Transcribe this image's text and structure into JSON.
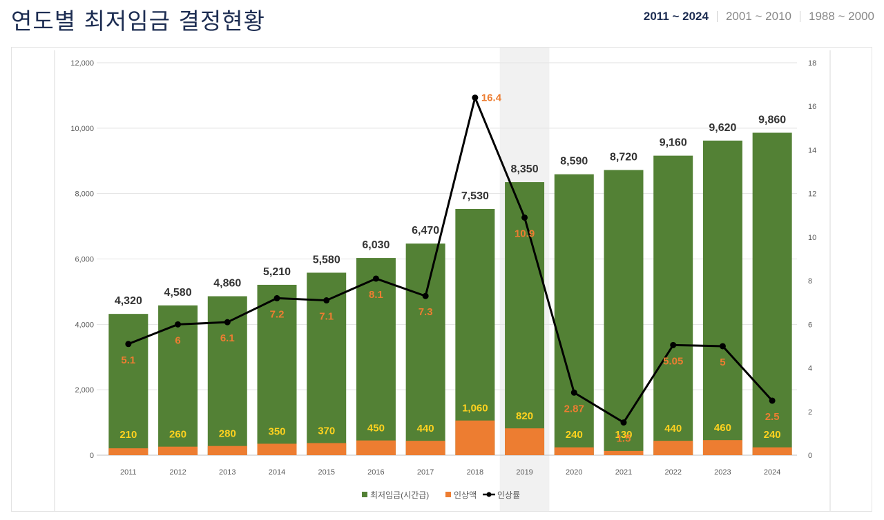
{
  "header": {
    "title": "연도별 최저임금 결정현황",
    "tabs": [
      {
        "label": "2011 ~ 2024",
        "active": true
      },
      {
        "label": "2001 ~ 2010",
        "active": false
      },
      {
        "label": "1988 ~ 2000",
        "active": false
      }
    ]
  },
  "colors": {
    "wage": "#538135",
    "increase_amount": "#ed7d31",
    "increase_rate": "#000000",
    "wage_label": "#333333",
    "rate_label": "#ed7d31",
    "amount_label": "#ffd21f",
    "highlight": "#f1f1f1"
  },
  "chart_data": {
    "type": "bar",
    "categories": [
      "2011",
      "2012",
      "2013",
      "2014",
      "2015",
      "2016",
      "2017",
      "2018",
      "2019",
      "2020",
      "2021",
      "2022",
      "2023",
      "2024"
    ],
    "series": [
      {
        "name": "최저임금(시간급)",
        "type": "bar",
        "axis": "left",
        "values": [
          4320,
          4580,
          4860,
          5210,
          5580,
          6030,
          6470,
          7530,
          8350,
          8590,
          8720,
          9160,
          9620,
          9860
        ],
        "labels": [
          "4,320",
          "4,580",
          "4,860",
          "5,210",
          "5,580",
          "6,030",
          "6,470",
          "7,530",
          "8,350",
          "8,590",
          "8,720",
          "9,160",
          "9,620",
          "9,860"
        ]
      },
      {
        "name": "인상액",
        "type": "bar",
        "axis": "left",
        "values": [
          210,
          260,
          280,
          350,
          370,
          450,
          440,
          1060,
          820,
          240,
          130,
          440,
          460,
          240
        ],
        "labels": [
          "210",
          "260",
          "280",
          "350",
          "370",
          "450",
          "440",
          "1,060",
          "820",
          "240",
          "130",
          "440",
          "460",
          "240"
        ]
      },
      {
        "name": "인상률",
        "type": "line",
        "axis": "right",
        "values": [
          5.1,
          6,
          6.1,
          7.2,
          7.1,
          8.1,
          7.3,
          16.4,
          10.9,
          2.87,
          1.5,
          5.05,
          5,
          2.5
        ],
        "labels": [
          "5.1",
          "6",
          "6.1",
          "7.2",
          "7.1",
          "8.1",
          "7.3",
          "16.4",
          "10.9",
          "2.87",
          "1.5",
          "5.05",
          "5",
          "2.5"
        ]
      }
    ],
    "y_left": {
      "range": [
        0,
        12000
      ],
      "ticks": [
        "0",
        "2,000",
        "4,000",
        "6,000",
        "8,000",
        "10,000",
        "12,000"
      ]
    },
    "y_right": {
      "range": [
        0,
        18
      ],
      "ticks": [
        "0",
        "2",
        "4",
        "6",
        "8",
        "10",
        "12",
        "14",
        "16",
        "18"
      ]
    },
    "highlight_category": "2019",
    "grid": true,
    "legend_position": "bottom"
  }
}
